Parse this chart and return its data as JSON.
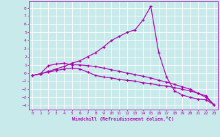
{
  "xlabel": "Windchill (Refroidissement éolien,°C)",
  "background_color": "#c8eaea",
  "grid_color": "#b0d8d8",
  "line_color": "#aa00aa",
  "xlim": [
    -0.5,
    23.5
  ],
  "ylim": [
    -4.5,
    8.8
  ],
  "xticks": [
    0,
    1,
    2,
    3,
    4,
    5,
    6,
    7,
    8,
    9,
    10,
    11,
    12,
    13,
    14,
    15,
    16,
    17,
    18,
    19,
    20,
    21,
    22,
    23
  ],
  "yticks": [
    -4,
    -3,
    -2,
    -1,
    0,
    1,
    2,
    3,
    4,
    5,
    6,
    7,
    8
  ],
  "line1_x": [
    0,
    1,
    2,
    3,
    4,
    5,
    6,
    7,
    8,
    9,
    10,
    11,
    12,
    13,
    14,
    15,
    16,
    17,
    18,
    19,
    20,
    21,
    22,
    23
  ],
  "line1_y": [
    -0.3,
    -0.1,
    0.1,
    0.3,
    0.5,
    0.6,
    0.5,
    0.1,
    -0.3,
    -0.5,
    -0.6,
    -0.8,
    -0.9,
    -1.0,
    -1.2,
    -1.3,
    -1.5,
    -1.6,
    -1.8,
    -2.0,
    -2.2,
    -2.5,
    -2.8,
    -3.9
  ],
  "line2_x": [
    0,
    1,
    2,
    3,
    4,
    5,
    6,
    7,
    8,
    9,
    10,
    11,
    12,
    13,
    14,
    15,
    16,
    17,
    18,
    19,
    20,
    21,
    22,
    23
  ],
  "line2_y": [
    -0.3,
    -0.1,
    0.9,
    1.1,
    1.2,
    1.0,
    1.0,
    0.9,
    0.8,
    0.6,
    0.4,
    0.2,
    0.0,
    -0.2,
    -0.4,
    -0.6,
    -0.9,
    -1.1,
    -1.4,
    -1.7,
    -2.0,
    -2.5,
    -3.0,
    -3.9
  ],
  "line3_x": [
    0,
    1,
    2,
    3,
    4,
    5,
    6,
    7,
    8,
    9,
    10,
    11,
    12,
    13,
    14,
    15,
    16,
    17,
    18,
    19,
    20,
    21,
    22,
    23
  ],
  "line3_y": [
    -0.3,
    -0.1,
    0.2,
    0.5,
    0.8,
    1.2,
    1.5,
    2.0,
    2.5,
    3.2,
    4.0,
    4.5,
    5.0,
    5.3,
    6.5,
    8.2,
    2.5,
    -0.5,
    -2.2,
    -2.7,
    -3.0,
    -3.2,
    -3.3,
    -3.9
  ]
}
